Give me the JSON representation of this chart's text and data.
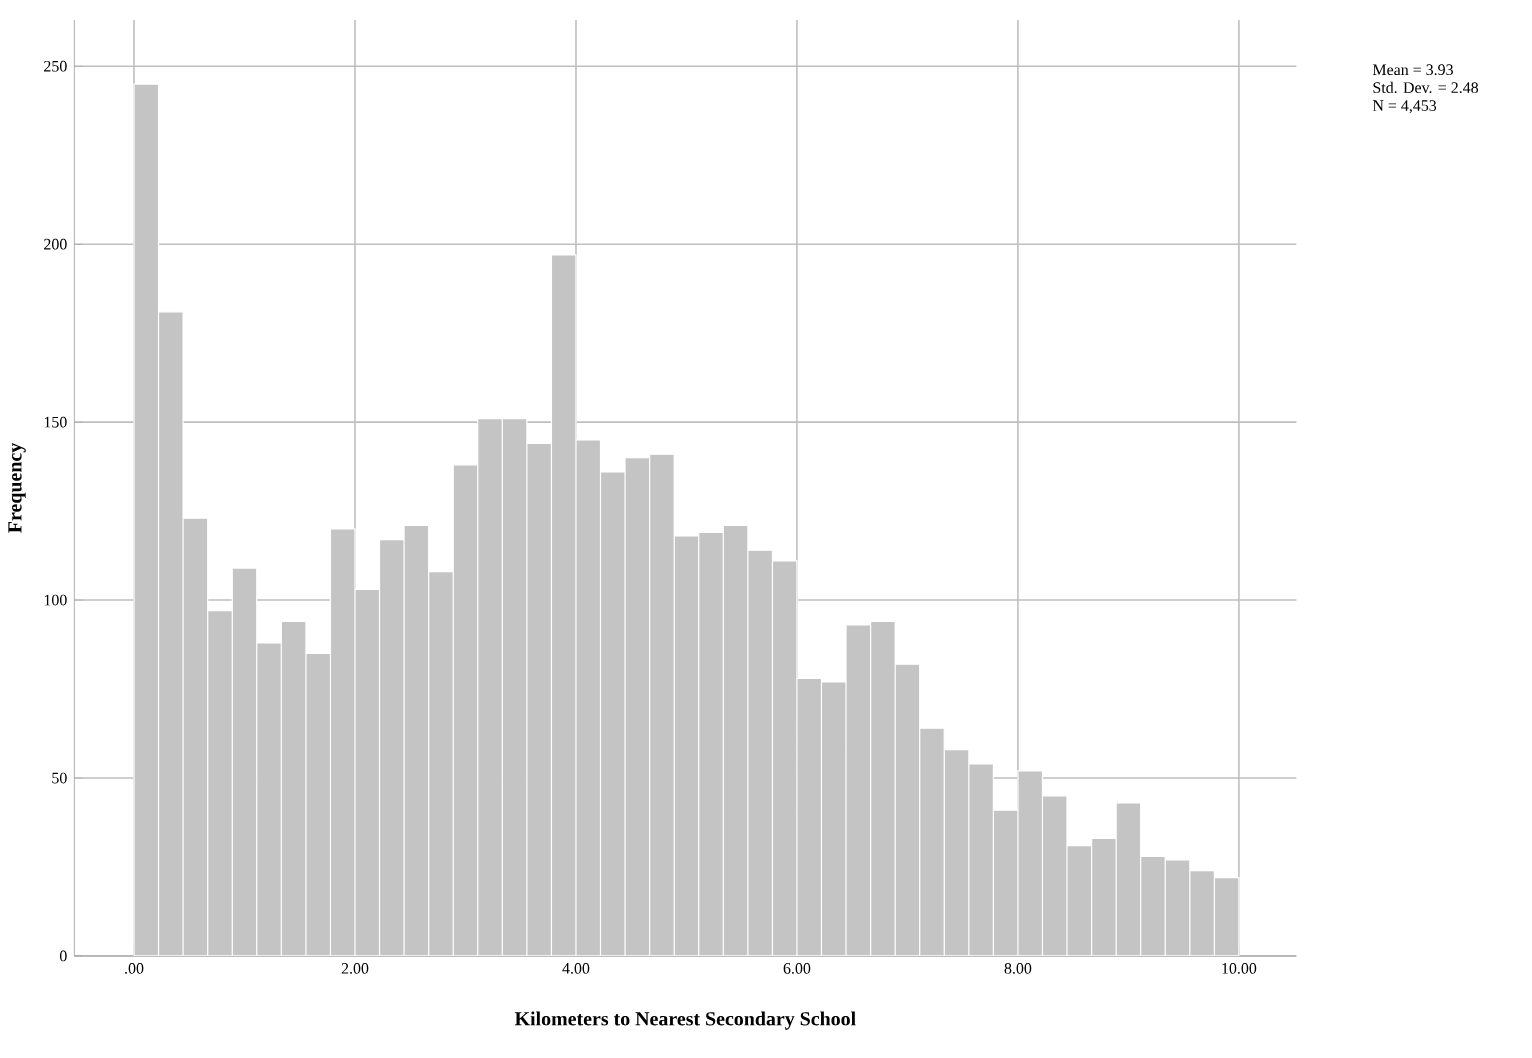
{
  "chart_data": {
    "type": "histogram",
    "xlabel": "Kilometers to Nearest Secondary School",
    "ylabel": "Frequency",
    "bins": [
      0,
      0.222,
      0.444,
      0.667,
      0.889,
      1.111,
      1.333,
      1.556,
      1.778,
      2,
      2.222,
      2.444,
      2.667,
      2.889,
      3.111,
      3.333,
      3.556,
      3.778,
      4,
      4.222,
      4.444,
      4.667,
      4.889,
      5.111,
      5.333,
      5.556,
      5.778,
      6,
      6.222,
      6.444,
      6.667,
      6.889,
      7.111,
      7.333,
      7.556,
      7.778,
      8,
      8.222,
      8.444,
      8.667,
      8.889,
      9.111,
      9.333,
      9.556,
      9.778,
      10
    ],
    "values": [
      245,
      181,
      123,
      97,
      109,
      88,
      94,
      85,
      120,
      103,
      117,
      121,
      108,
      138,
      151,
      151,
      144,
      197,
      145,
      136,
      140,
      141,
      118,
      119,
      121,
      114,
      111,
      78,
      77,
      93,
      94,
      82,
      64,
      58,
      54,
      41,
      52,
      45,
      31,
      33,
      43,
      28,
      27,
      24,
      22
    ],
    "color": "#c4c4c4",
    "xlim": [
      -0.54,
      10.52
    ],
    "ylim": [
      0,
      263
    ],
    "xticks": [
      {
        "value": 0,
        "label": ".00"
      },
      {
        "value": 2,
        "label": "2.00"
      },
      {
        "value": 4,
        "label": "4.00"
      },
      {
        "value": 6,
        "label": "6.00"
      },
      {
        "value": 8,
        "label": "8.00"
      },
      {
        "value": 10,
        "label": "10.00"
      }
    ],
    "yticks": [
      0,
      50,
      100,
      150,
      200,
      250
    ],
    "grid": true,
    "annotations": [
      "Mean = 3.93",
      "Std. Dev. = 2.48",
      "N = 4,453"
    ]
  }
}
